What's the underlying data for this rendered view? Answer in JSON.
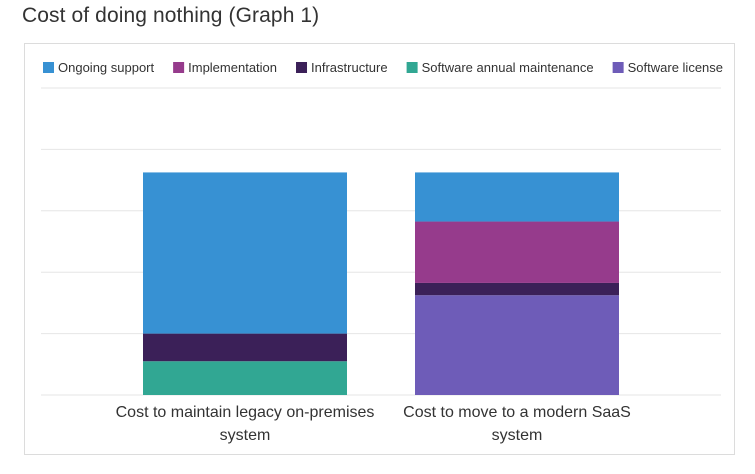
{
  "page": {
    "title": "Cost of doing nothing (Graph 1)"
  },
  "chart_data": {
    "type": "bar",
    "stacked": true,
    "title": "",
    "xlabel": "",
    "ylabel": "",
    "ylim": [
      0,
      100
    ],
    "grid": true,
    "legend_position": "top",
    "categories": [
      [
        "Cost to maintain legacy on-premises",
        "system"
      ],
      [
        "Cost to move to a modern SaaS",
        "system"
      ]
    ],
    "series": [
      {
        "name": "Ongoing support",
        "color": "#3791d3",
        "values": [
          52.5,
          16
        ]
      },
      {
        "name": "Implementation",
        "color": "#963b8c",
        "values": [
          0,
          20
        ]
      },
      {
        "name": "Infrastructure",
        "color": "#3b2058",
        "values": [
          9,
          4
        ]
      },
      {
        "name": "Software annual maintenance",
        "color": "#31a793",
        "values": [
          11,
          0
        ]
      },
      {
        "name": "Software license",
        "color": "#6e5cb8",
        "values": [
          0,
          32.5
        ]
      }
    ],
    "stack_order_bottom_to_top": [
      "Software license",
      "Software annual maintenance",
      "Infrastructure",
      "Implementation",
      "Ongoing support"
    ]
  }
}
